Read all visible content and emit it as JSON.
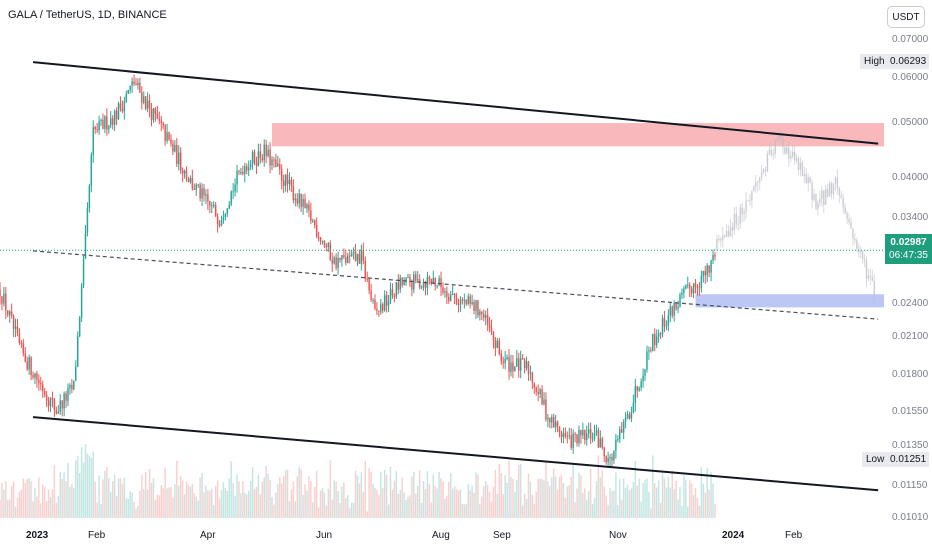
{
  "header": {
    "title": "GALA / TetherUS, 1D, BINANCE",
    "currency": "USDT"
  },
  "price_axis": [
    "0.07000",
    "0.06000",
    "0.05000",
    "0.04000",
    "0.03400",
    "0.02400",
    "0.02100",
    "0.01800",
    "0.01550",
    "0.01350",
    "0.01150",
    "0.01010"
  ],
  "time_axis": [
    {
      "label": "2023",
      "bold": true
    },
    {
      "label": "Feb",
      "bold": false
    },
    {
      "label": "Apr",
      "bold": false
    },
    {
      "label": "Jun",
      "bold": false
    },
    {
      "label": "Aug",
      "bold": false
    },
    {
      "label": "Sep",
      "bold": false
    },
    {
      "label": "Nov",
      "bold": false
    },
    {
      "label": "2024",
      "bold": true
    },
    {
      "label": "Feb",
      "bold": false
    }
  ],
  "high": {
    "label": "High",
    "value": "0.06293"
  },
  "low": {
    "label": "Low",
    "value": "0.01251"
  },
  "current": {
    "price": "0.02987",
    "countdown": "06:47:35"
  },
  "colors": {
    "up": "#26a69a",
    "down": "#ef5350",
    "current": "#1f9e7d",
    "resistance_zone": "#f7a1a6",
    "support_zone": "#a5b4f2",
    "trendline": "#131722"
  },
  "chart_data": {
    "type": "candlestick",
    "symbol": "GALA / TetherUS",
    "interval": "1D",
    "exchange": "BINANCE",
    "ylim": [
      0.0101,
      0.07
    ],
    "y_scale": "log",
    "x_range": [
      "2022-12-01",
      "2024-02-29"
    ],
    "high": 0.06293,
    "low": 0.01251,
    "last": 0.02987,
    "anchors": [
      {
        "date": "2022-12-01",
        "price": 0.0255
      },
      {
        "date": "2022-12-12",
        "price": 0.0198
      },
      {
        "date": "2022-12-30",
        "price": 0.0156
      },
      {
        "date": "2023-01-08",
        "price": 0.0172
      },
      {
        "date": "2023-01-14",
        "price": 0.031
      },
      {
        "date": "2023-01-18",
        "price": 0.048
      },
      {
        "date": "2023-01-30",
        "price": 0.052
      },
      {
        "date": "2023-02-08",
        "price": 0.059
      },
      {
        "date": "2023-02-22",
        "price": 0.049
      },
      {
        "date": "2023-03-10",
        "price": 0.039
      },
      {
        "date": "2023-03-24",
        "price": 0.034
      },
      {
        "date": "2023-04-05",
        "price": 0.042
      },
      {
        "date": "2023-04-16",
        "price": 0.0445
      },
      {
        "date": "2023-04-28",
        "price": 0.039
      },
      {
        "date": "2023-05-10",
        "price": 0.034
      },
      {
        "date": "2023-05-22",
        "price": 0.0285
      },
      {
        "date": "2023-06-05",
        "price": 0.029
      },
      {
        "date": "2023-06-12",
        "price": 0.023
      },
      {
        "date": "2023-06-25",
        "price": 0.026
      },
      {
        "date": "2023-07-12",
        "price": 0.0265
      },
      {
        "date": "2023-07-24",
        "price": 0.0245
      },
      {
        "date": "2023-08-05",
        "price": 0.0235
      },
      {
        "date": "2023-08-17",
        "price": 0.019
      },
      {
        "date": "2023-08-30",
        "price": 0.0185
      },
      {
        "date": "2023-09-10",
        "price": 0.015
      },
      {
        "date": "2023-09-20",
        "price": 0.0138
      },
      {
        "date": "2023-10-03",
        "price": 0.0142
      },
      {
        "date": "2023-10-11",
        "price": 0.0127
      },
      {
        "date": "2023-10-20",
        "price": 0.0152
      },
      {
        "date": "2023-11-01",
        "price": 0.0205
      },
      {
        "date": "2023-11-12",
        "price": 0.0235
      },
      {
        "date": "2023-11-22",
        "price": 0.0258
      },
      {
        "date": "2023-12-01",
        "price": 0.0275
      },
      {
        "date": "2023-12-04",
        "price": 0.0299
      }
    ],
    "projection": [
      {
        "date": "2023-12-04",
        "price": 0.0299
      },
      {
        "date": "2023-12-20",
        "price": 0.036
      },
      {
        "date": "2024-01-06",
        "price": 0.047
      },
      {
        "date": "2024-01-16",
        "price": 0.042
      },
      {
        "date": "2024-01-26",
        "price": 0.036
      },
      {
        "date": "2024-02-04",
        "price": 0.0395
      },
      {
        "date": "2024-02-14",
        "price": 0.031
      },
      {
        "date": "2024-02-24",
        "price": 0.0255
      }
    ],
    "channel": {
      "upper": [
        {
          "date": "2022-12-18",
          "price": 0.064
        },
        {
          "date": "2024-02-26",
          "price": 0.046
        }
      ],
      "lower": [
        {
          "date": "2022-12-18",
          "price": 0.0152
        },
        {
          "date": "2024-02-26",
          "price": 0.0113
        }
      ],
      "mid_dashed": [
        {
          "date": "2022-12-18",
          "price": 0.0298
        },
        {
          "date": "2024-02-26",
          "price": 0.0226
        }
      ]
    },
    "zones": [
      {
        "name": "resistance",
        "from": "2023-04-20",
        "to": "2024-02-29",
        "top": 0.05,
        "bottom": 0.0455
      },
      {
        "name": "support",
        "from": "2023-11-24",
        "to": "2024-02-29",
        "top": 0.025,
        "bottom": 0.0237
      }
    ],
    "volume_relative_max": 1.0
  }
}
